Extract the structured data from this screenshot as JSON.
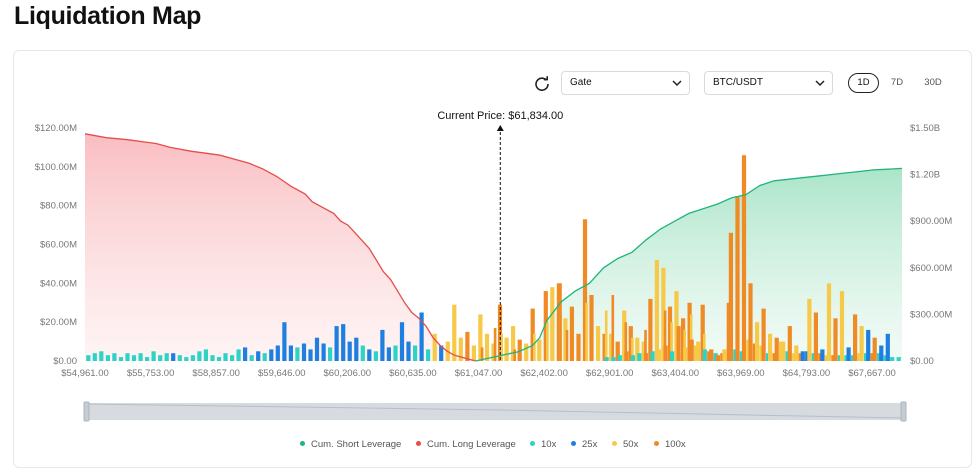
{
  "page": {
    "title": "Liquidation Map"
  },
  "toolbar": {
    "refresh_icon": "refresh-icon",
    "exchange": "Gate",
    "pair": "BTC/USDT",
    "ranges": [
      "1D",
      "7D",
      "30D"
    ],
    "active_range": "1D"
  },
  "colors": {
    "short": "#1fb57d",
    "long": "#e74c4c",
    "x10": "#2ed3c6",
    "x25": "#1e7fe0",
    "x50": "#f7c948",
    "x100": "#f08a24"
  },
  "chart_data": {
    "type": "bar",
    "title": "Liquidation Map",
    "current_price_label": "Current Price: $61,834.00",
    "current_price": 61834,
    "x_tick_labels": [
      "$54,961.00",
      "$55,753.00",
      "$58,857.00",
      "$59,646.00",
      "$60,206.00",
      "$60,635.00",
      "$61,047.00",
      "$62,402.00",
      "$62,901.00",
      "$63,404.00",
      "$63,969.00",
      "$64,793.00",
      "$67,667.00"
    ],
    "y_left": {
      "ticks": [
        "$0.00",
        "$20.00M",
        "$40.00M",
        "$60.00M",
        "$80.00M",
        "$100.00M",
        "$120.00M"
      ],
      "ylim": [
        0,
        120000000
      ]
    },
    "y_right": {
      "ticks": [
        "$0.00",
        "$300.00M",
        "$600.00M",
        "$900.00M",
        "$1.20B",
        "$1.50B"
      ],
      "ylim": [
        0,
        1500000000
      ]
    },
    "grid": false,
    "legend": [
      "Cum. Short Leverage",
      "Cum. Long Leverage",
      "10x",
      "25x",
      "50x",
      "100x"
    ],
    "legend_position": "bottom-center",
    "bin_count": 125,
    "current_bin": 64,
    "bars": [
      {
        "bin": 0,
        "lev": "10x",
        "value": 3
      },
      {
        "bin": 1,
        "lev": "10x",
        "value": 4
      },
      {
        "bin": 2,
        "lev": "10x",
        "value": 5
      },
      {
        "bin": 3,
        "lev": "10x",
        "value": 3
      },
      {
        "bin": 4,
        "lev": "10x",
        "value": 4
      },
      {
        "bin": 5,
        "lev": "10x",
        "value": 2
      },
      {
        "bin": 6,
        "lev": "10x",
        "value": 4
      },
      {
        "bin": 7,
        "lev": "10x",
        "value": 3
      },
      {
        "bin": 8,
        "lev": "10x",
        "value": 4
      },
      {
        "bin": 9,
        "lev": "10x",
        "value": 2
      },
      {
        "bin": 10,
        "lev": "10x",
        "value": 5
      },
      {
        "bin": 11,
        "lev": "10x",
        "value": 3
      },
      {
        "bin": 12,
        "lev": "10x",
        "value": 4
      },
      {
        "bin": 13,
        "lev": "25x",
        "value": 4
      },
      {
        "bin": 14,
        "lev": "10x",
        "value": 3
      },
      {
        "bin": 15,
        "lev": "10x",
        "value": 2
      },
      {
        "bin": 16,
        "lev": "10x",
        "value": 3
      },
      {
        "bin": 17,
        "lev": "10x",
        "value": 5
      },
      {
        "bin": 18,
        "lev": "10x",
        "value": 6
      },
      {
        "bin": 19,
        "lev": "10x",
        "value": 3
      },
      {
        "bin": 20,
        "lev": "10x",
        "value": 2
      },
      {
        "bin": 21,
        "lev": "10x",
        "value": 4
      },
      {
        "bin": 22,
        "lev": "10x",
        "value": 3
      },
      {
        "bin": 23,
        "lev": "10x",
        "value": 6
      },
      {
        "bin": 24,
        "lev": "25x",
        "value": 7
      },
      {
        "bin": 25,
        "lev": "10x",
        "value": 3
      },
      {
        "bin": 26,
        "lev": "25x",
        "value": 5
      },
      {
        "bin": 27,
        "lev": "10x",
        "value": 4
      },
      {
        "bin": 28,
        "lev": "25x",
        "value": 6
      },
      {
        "bin": 29,
        "lev": "25x",
        "value": 8
      },
      {
        "bin": 30,
        "lev": "25x",
        "value": 20
      },
      {
        "bin": 31,
        "lev": "25x",
        "value": 8
      },
      {
        "bin": 32,
        "lev": "10x",
        "value": 7
      },
      {
        "bin": 33,
        "lev": "25x",
        "value": 9
      },
      {
        "bin": 34,
        "lev": "25x",
        "value": 6
      },
      {
        "bin": 35,
        "lev": "25x",
        "value": 12
      },
      {
        "bin": 36,
        "lev": "25x",
        "value": 9
      },
      {
        "bin": 37,
        "lev": "10x",
        "value": 7
      },
      {
        "bin": 38,
        "lev": "25x",
        "value": 18
      },
      {
        "bin": 39,
        "lev": "25x",
        "value": 19
      },
      {
        "bin": 40,
        "lev": "25x",
        "value": 10
      },
      {
        "bin": 41,
        "lev": "25x",
        "value": 12
      },
      {
        "bin": 42,
        "lev": "10x",
        "value": 8
      },
      {
        "bin": 43,
        "lev": "25x",
        "value": 6
      },
      {
        "bin": 44,
        "lev": "10x",
        "value": 5
      },
      {
        "bin": 45,
        "lev": "25x",
        "value": 16
      },
      {
        "bin": 46,
        "lev": "25x",
        "value": 7
      },
      {
        "bin": 47,
        "lev": "10x",
        "value": 8
      },
      {
        "bin": 48,
        "lev": "25x",
        "value": 20
      },
      {
        "bin": 49,
        "lev": "25x",
        "value": 10
      },
      {
        "bin": 50,
        "lev": "10x",
        "value": 8
      },
      {
        "bin": 51,
        "lev": "25x",
        "value": 25
      },
      {
        "bin": 52,
        "lev": "10x",
        "value": 6
      },
      {
        "bin": 53,
        "lev": "50x",
        "value": 14
      },
      {
        "bin": 54,
        "lev": "25x",
        "value": 8
      },
      {
        "bin": 55,
        "lev": "50x",
        "value": 10
      },
      {
        "bin": 56,
        "lev": "50x",
        "value": 29
      },
      {
        "bin": 57,
        "lev": "50x",
        "value": 12
      },
      {
        "bin": 58,
        "lev": "100x",
        "value": 15
      },
      {
        "bin": 59,
        "lev": "50x",
        "value": 8
      },
      {
        "bin": 60,
        "lev": "50x",
        "value": 24
      },
      {
        "bin": 61,
        "lev": "50x",
        "value": 14
      },
      {
        "bin": 62,
        "lev": "50x",
        "value": 9
      },
      {
        "bin": 63,
        "lev": "100x",
        "value": 29
      },
      {
        "bin": 64,
        "lev": "50x",
        "value": 12
      },
      {
        "bin": 65,
        "lev": "50x",
        "value": 18
      },
      {
        "bin": 66,
        "lev": "100x",
        "value": 11
      },
      {
        "bin": 67,
        "lev": "50x",
        "value": 9
      },
      {
        "bin": 68,
        "lev": "100x",
        "value": 27
      },
      {
        "bin": 69,
        "lev": "50x",
        "value": 11
      },
      {
        "bin": 70,
        "lev": "100x",
        "value": 36
      },
      {
        "bin": 71,
        "lev": "50x",
        "value": 38
      },
      {
        "bin": 72,
        "lev": "100x",
        "value": 40
      },
      {
        "bin": 73,
        "lev": "50x",
        "value": 22
      },
      {
        "bin": 74,
        "lev": "100x",
        "value": 28
      },
      {
        "bin": 75,
        "lev": "100x",
        "value": 14
      },
      {
        "bin": 76,
        "lev": "100x",
        "value": 73
      },
      {
        "bin": 77,
        "lev": "100x",
        "value": 34
      },
      {
        "bin": 78,
        "lev": "50x",
        "value": 18
      },
      {
        "bin": 79,
        "lev": "100x",
        "value": 14
      },
      {
        "bin": 80,
        "lev": "50x",
        "value": 14
      },
      {
        "bin": 81,
        "lev": "100x",
        "value": 10
      },
      {
        "bin": 82,
        "lev": "50x",
        "value": 26
      },
      {
        "bin": 83,
        "lev": "100x",
        "value": 18
      },
      {
        "bin": 84,
        "lev": "50x",
        "value": 12
      },
      {
        "bin": 85,
        "lev": "50x",
        "value": 10
      },
      {
        "bin": 86,
        "lev": "100x",
        "value": 32
      },
      {
        "bin": 87,
        "lev": "50x",
        "value": 52
      },
      {
        "bin": 88,
        "lev": "50x",
        "value": 48
      },
      {
        "bin": 89,
        "lev": "100x",
        "value": 28
      },
      {
        "bin": 90,
        "lev": "50x",
        "value": 36
      },
      {
        "bin": 91,
        "lev": "100x",
        "value": 22
      },
      {
        "bin": 92,
        "lev": "100x",
        "value": 30
      },
      {
        "bin": 93,
        "lev": "50x",
        "value": 8
      },
      {
        "bin": 94,
        "lev": "100x",
        "value": 29
      },
      {
        "bin": 95,
        "lev": "100x",
        "value": 5
      },
      {
        "bin": 96,
        "lev": "10x",
        "value": 4
      },
      {
        "bin": 97,
        "lev": "100x",
        "value": 4
      },
      {
        "bin": 98,
        "lev": "100x",
        "value": 30
      },
      {
        "bin": 99,
        "lev": "10x",
        "value": 6
      },
      {
        "bin": 100,
        "lev": "10x",
        "value": 5
      },
      {
        "bin": 101,
        "lev": "50x",
        "value": 11
      },
      {
        "bin": 102,
        "lev": "100x",
        "value": 9
      },
      {
        "bin": 103,
        "lev": "50x",
        "value": 8
      },
      {
        "bin": 104,
        "lev": "10x",
        "value": 4
      },
      {
        "bin": 105,
        "lev": "100x",
        "value": 4
      },
      {
        "bin": 106,
        "lev": "50x",
        "value": 10
      },
      {
        "bin": 107,
        "lev": "10x",
        "value": 5
      },
      {
        "bin": 108,
        "lev": "50x",
        "value": 4
      },
      {
        "bin": 109,
        "lev": "100x",
        "value": 4
      },
      {
        "bin": 110,
        "lev": "25x",
        "value": 5
      },
      {
        "bin": 111,
        "lev": "10x",
        "value": 4
      },
      {
        "bin": 112,
        "lev": "100x",
        "value": 4
      },
      {
        "bin": 113,
        "lev": "50x",
        "value": 3
      },
      {
        "bin": 114,
        "lev": "100x",
        "value": 3
      },
      {
        "bin": 115,
        "lev": "10x",
        "value": 3
      },
      {
        "bin": 116,
        "lev": "10x",
        "value": 3
      },
      {
        "bin": 117,
        "lev": "10x",
        "value": 3
      },
      {
        "bin": 118,
        "lev": "50x",
        "value": 4
      },
      {
        "bin": 119,
        "lev": "10x",
        "value": 4
      },
      {
        "bin": 120,
        "lev": "100x",
        "value": 4
      },
      {
        "bin": 121,
        "lev": "10x",
        "value": 4
      },
      {
        "bin": 122,
        "lev": "10x",
        "value": 3
      },
      {
        "bin": 123,
        "lev": "10x",
        "value": 2
      },
      {
        "bin": 124,
        "lev": "10x",
        "value": 2
      }
    ],
    "bars_extra": [
      {
        "bin": 70,
        "lev": "50x",
        "value": 20
      },
      {
        "bin": 72,
        "lev": "50x",
        "value": 24
      },
      {
        "bin": 76,
        "lev": "50x",
        "value": 30
      },
      {
        "bin": 79,
        "lev": "50x",
        "value": 26
      },
      {
        "bin": 80,
        "lev": "100x",
        "value": 34
      },
      {
        "bin": 62,
        "lev": "100x",
        "value": 17
      },
      {
        "bin": 60,
        "lev": "100x",
        "value": 7
      },
      {
        "bin": 68,
        "lev": "50x",
        "value": 14
      },
      {
        "bin": 83,
        "lev": "50x",
        "value": 12
      },
      {
        "bin": 85,
        "lev": "100x",
        "value": 16
      },
      {
        "bin": 89,
        "lev": "50x",
        "value": 20
      },
      {
        "bin": 91,
        "lev": "50x",
        "value": 16
      },
      {
        "bin": 88,
        "lev": "100x",
        "value": 26
      },
      {
        "bin": 92,
        "lev": "50x",
        "value": 24
      },
      {
        "bin": 94,
        "lev": "50x",
        "value": 14
      },
      {
        "bin": 63,
        "lev": "50x",
        "value": 14
      },
      {
        "bin": 65,
        "lev": "100x",
        "value": 6
      },
      {
        "bin": 73,
        "lev": "100x",
        "value": 16
      },
      {
        "bin": 72,
        "lev": "100x",
        "value": 40
      },
      {
        "bin": 82,
        "lev": "100x",
        "value": 20
      }
    ],
    "bars_right": [
      {
        "bin": 64,
        "lev": "10x",
        "value": 2
      },
      {
        "bin": 65,
        "lev": "10x",
        "value": 2
      },
      {
        "bin": 66,
        "lev": "10x",
        "value": 3
      },
      {
        "bin": 67,
        "lev": "100x",
        "value": 5
      },
      {
        "bin": 68,
        "lev": "10x",
        "value": 3
      },
      {
        "bin": 69,
        "lev": "10x",
        "value": 4
      },
      {
        "bin": 70,
        "lev": "100x",
        "value": 4
      },
      {
        "bin": 71,
        "lev": "10x",
        "value": 5
      },
      {
        "bin": 72,
        "lev": "50x",
        "value": 6
      },
      {
        "bin": 73,
        "lev": "100x",
        "value": 8
      },
      {
        "bin": 74,
        "lev": "10x",
        "value": 5
      },
      {
        "bin": 75,
        "lev": "100x",
        "value": 18
      },
      {
        "bin": 76,
        "lev": "50x",
        "value": 7
      },
      {
        "bin": 77,
        "lev": "100x",
        "value": 11
      },
      {
        "bin": 78,
        "lev": "50x",
        "value": 10
      },
      {
        "bin": 79,
        "lev": "10x",
        "value": 6
      },
      {
        "bin": 80,
        "lev": "100x",
        "value": 6
      },
      {
        "bin": 81,
        "lev": "100x",
        "value": 3
      },
      {
        "bin": 82,
        "lev": "50x",
        "value": 6
      },
      {
        "bin": 83,
        "lev": "100x",
        "value": 66
      },
      {
        "bin": 84,
        "lev": "100x",
        "value": 85
      },
      {
        "bin": 85,
        "lev": "100x",
        "value": 106
      },
      {
        "bin": 86,
        "lev": "100x",
        "value": 40
      },
      {
        "bin": 87,
        "lev": "50x",
        "value": 20
      },
      {
        "bin": 88,
        "lev": "100x",
        "value": 27
      },
      {
        "bin": 89,
        "lev": "50x",
        "value": 14
      },
      {
        "bin": 90,
        "lev": "100x",
        "value": 12
      },
      {
        "bin": 91,
        "lev": "50x",
        "value": 10
      },
      {
        "bin": 92,
        "lev": "100x",
        "value": 18
      },
      {
        "bin": 93,
        "lev": "50x",
        "value": 8
      },
      {
        "bin": 94,
        "lev": "25x",
        "value": 5
      },
      {
        "bin": 95,
        "lev": "50x",
        "value": 32
      },
      {
        "bin": 96,
        "lev": "100x",
        "value": 25
      },
      {
        "bin": 97,
        "lev": "25x",
        "value": 6
      },
      {
        "bin": 98,
        "lev": "50x",
        "value": 40
      },
      {
        "bin": 99,
        "lev": "100x",
        "value": 22
      },
      {
        "bin": 100,
        "lev": "50x",
        "value": 36
      },
      {
        "bin": 101,
        "lev": "25x",
        "value": 7
      },
      {
        "bin": 102,
        "lev": "100x",
        "value": 24
      },
      {
        "bin": 103,
        "lev": "50x",
        "value": 18
      },
      {
        "bin": 104,
        "lev": "25x",
        "value": 16
      },
      {
        "bin": 105,
        "lev": "100x",
        "value": 12
      },
      {
        "bin": 106,
        "lev": "25x",
        "value": 8
      },
      {
        "bin": 107,
        "lev": "25x",
        "value": 14
      }
    ],
    "cum_long_left_scale": [
      [
        0,
        117
      ],
      [
        6,
        115
      ],
      [
        12,
        114
      ],
      [
        16,
        113
      ],
      [
        20,
        112
      ],
      [
        24,
        110
      ],
      [
        30,
        108
      ],
      [
        34,
        107
      ],
      [
        38,
        106
      ],
      [
        42,
        104
      ],
      [
        46,
        102
      ],
      [
        50,
        99
      ],
      [
        54,
        95
      ],
      [
        58,
        90
      ],
      [
        62,
        86
      ],
      [
        64,
        82
      ],
      [
        66,
        80
      ],
      [
        70,
        76
      ],
      [
        72,
        72
      ],
      [
        74,
        70
      ],
      [
        76,
        66
      ],
      [
        78,
        62
      ],
      [
        80,
        58
      ],
      [
        82,
        52
      ],
      [
        84,
        46
      ],
      [
        86,
        42
      ],
      [
        88,
        36
      ],
      [
        90,
        30
      ],
      [
        92,
        25
      ],
      [
        94,
        22
      ],
      [
        96,
        18
      ],
      [
        98,
        12
      ],
      [
        100,
        8
      ],
      [
        102,
        5
      ],
      [
        104,
        3
      ],
      [
        106,
        2
      ],
      [
        108,
        1
      ],
      [
        110,
        0
      ]
    ],
    "cum_short_right_scale": [
      [
        110,
        0
      ],
      [
        114,
        20
      ],
      [
        118,
        40
      ],
      [
        122,
        60
      ],
      [
        124,
        80
      ],
      [
        126,
        100
      ],
      [
        128,
        150
      ],
      [
        130,
        260
      ],
      [
        132,
        320
      ],
      [
        134,
        380
      ],
      [
        138,
        450
      ],
      [
        142,
        500
      ],
      [
        146,
        600
      ],
      [
        150,
        660
      ],
      [
        154,
        700
      ],
      [
        158,
        780
      ],
      [
        162,
        850
      ],
      [
        166,
        900
      ],
      [
        170,
        950
      ],
      [
        174,
        980
      ],
      [
        178,
        1010
      ],
      [
        182,
        1050
      ],
      [
        186,
        1070
      ],
      [
        190,
        1130
      ],
      [
        194,
        1160
      ],
      [
        198,
        1170
      ],
      [
        202,
        1180
      ],
      [
        206,
        1190
      ],
      [
        210,
        1200
      ],
      [
        214,
        1210
      ],
      [
        218,
        1220
      ],
      [
        222,
        1230
      ],
      [
        226,
        1235
      ],
      [
        230,
        1240
      ]
    ]
  },
  "legend_labels": {
    "short": "Cum. Short Leverage",
    "long": "Cum. Long Leverage",
    "x10": "10x",
    "x25": "25x",
    "x50": "50x",
    "x100": "100x"
  }
}
